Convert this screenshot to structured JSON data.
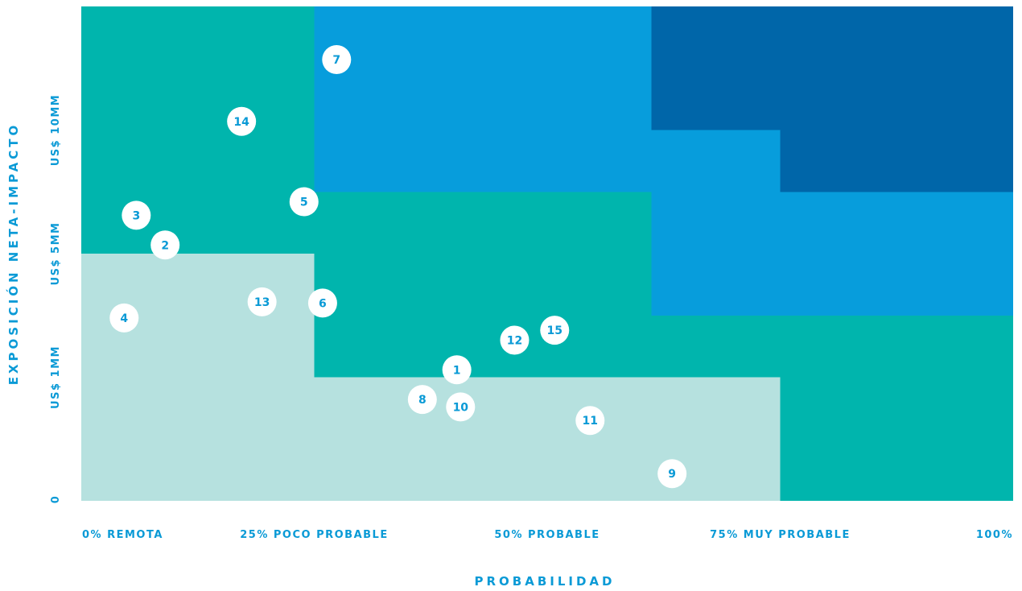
{
  "chart_data": {
    "type": "scatter",
    "title": "",
    "xlabel": "PROBABILIDAD",
    "ylabel": "EXPOSICIÓN NETA-IMPACTO",
    "x_ticks": [
      {
        "value": 0,
        "label": "0% REMOTA"
      },
      {
        "value": 25,
        "label": "25% POCO PROBABLE"
      },
      {
        "value": 50,
        "label": "50% PROBABLE"
      },
      {
        "value": 75,
        "label": "75% MUY PROBABLE"
      },
      {
        "value": 100,
        "label": "100%"
      }
    ],
    "y_ticks": [
      {
        "value": 0,
        "label": "0"
      },
      {
        "value": 1,
        "label": "US$ 1MM"
      },
      {
        "value": 2,
        "label": "US$ 5MM"
      },
      {
        "value": 3,
        "label": "US$ 10MM"
      }
    ],
    "xlim": [
      0,
      100
    ],
    "ylim": [
      0,
      4
    ],
    "zone_colors": {
      "low": "#b6e1df",
      "medium": "#00b5ad",
      "high": "#079ddc",
      "critical": "#0066a9"
    },
    "zones": [
      {
        "level": "low",
        "polygon": [
          [
            0,
            0
          ],
          [
            75,
            0
          ],
          [
            75,
            1
          ],
          [
            25,
            1
          ],
          [
            25,
            2
          ],
          [
            0,
            2
          ]
        ]
      },
      {
        "level": "medium",
        "polygon": [
          [
            0,
            2
          ],
          [
            25,
            2
          ],
          [
            25,
            1
          ],
          [
            75,
            1
          ],
          [
            75,
            0
          ],
          [
            100,
            0
          ],
          [
            100,
            1.5
          ],
          [
            61.2,
            1.5
          ],
          [
            61.2,
            2.5
          ],
          [
            25,
            2.5
          ],
          [
            25,
            4
          ],
          [
            0,
            4
          ]
        ]
      },
      {
        "level": "high",
        "polygon": [
          [
            25,
            2.5
          ],
          [
            61.2,
            2.5
          ],
          [
            61.2,
            1.5
          ],
          [
            100,
            1.5
          ],
          [
            100,
            2.5
          ],
          [
            75,
            2.5
          ],
          [
            75,
            3
          ],
          [
            61.2,
            3
          ],
          [
            61.2,
            4
          ],
          [
            25,
            4
          ]
        ]
      },
      {
        "level": "critical",
        "polygon": [
          [
            61.2,
            4
          ],
          [
            100,
            4
          ],
          [
            100,
            2.5
          ],
          [
            75,
            2.5
          ],
          [
            75,
            3
          ],
          [
            61.2,
            3
          ]
        ]
      }
    ],
    "points": [
      {
        "label": "1",
        "x": 40.3,
        "y": 1.06
      },
      {
        "label": "2",
        "x": 9.0,
        "y": 2.07
      },
      {
        "label": "3",
        "x": 5.9,
        "y": 2.31
      },
      {
        "label": "4",
        "x": 4.6,
        "y": 1.48
      },
      {
        "label": "5",
        "x": 23.9,
        "y": 2.42
      },
      {
        "label": "6",
        "x": 25.9,
        "y": 1.6
      },
      {
        "label": "7",
        "x": 27.4,
        "y": 3.57
      },
      {
        "label": "8",
        "x": 36.6,
        "y": 0.82
      },
      {
        "label": "9",
        "x": 63.4,
        "y": 0.22
      },
      {
        "label": "10",
        "x": 40.7,
        "y": 0.76
      },
      {
        "label": "11",
        "x": 54.6,
        "y": 0.65
      },
      {
        "label": "12",
        "x": 46.5,
        "y": 1.3
      },
      {
        "label": "13",
        "x": 19.4,
        "y": 1.61
      },
      {
        "label": "14",
        "x": 17.2,
        "y": 3.07
      },
      {
        "label": "15",
        "x": 50.8,
        "y": 1.38
      }
    ]
  }
}
